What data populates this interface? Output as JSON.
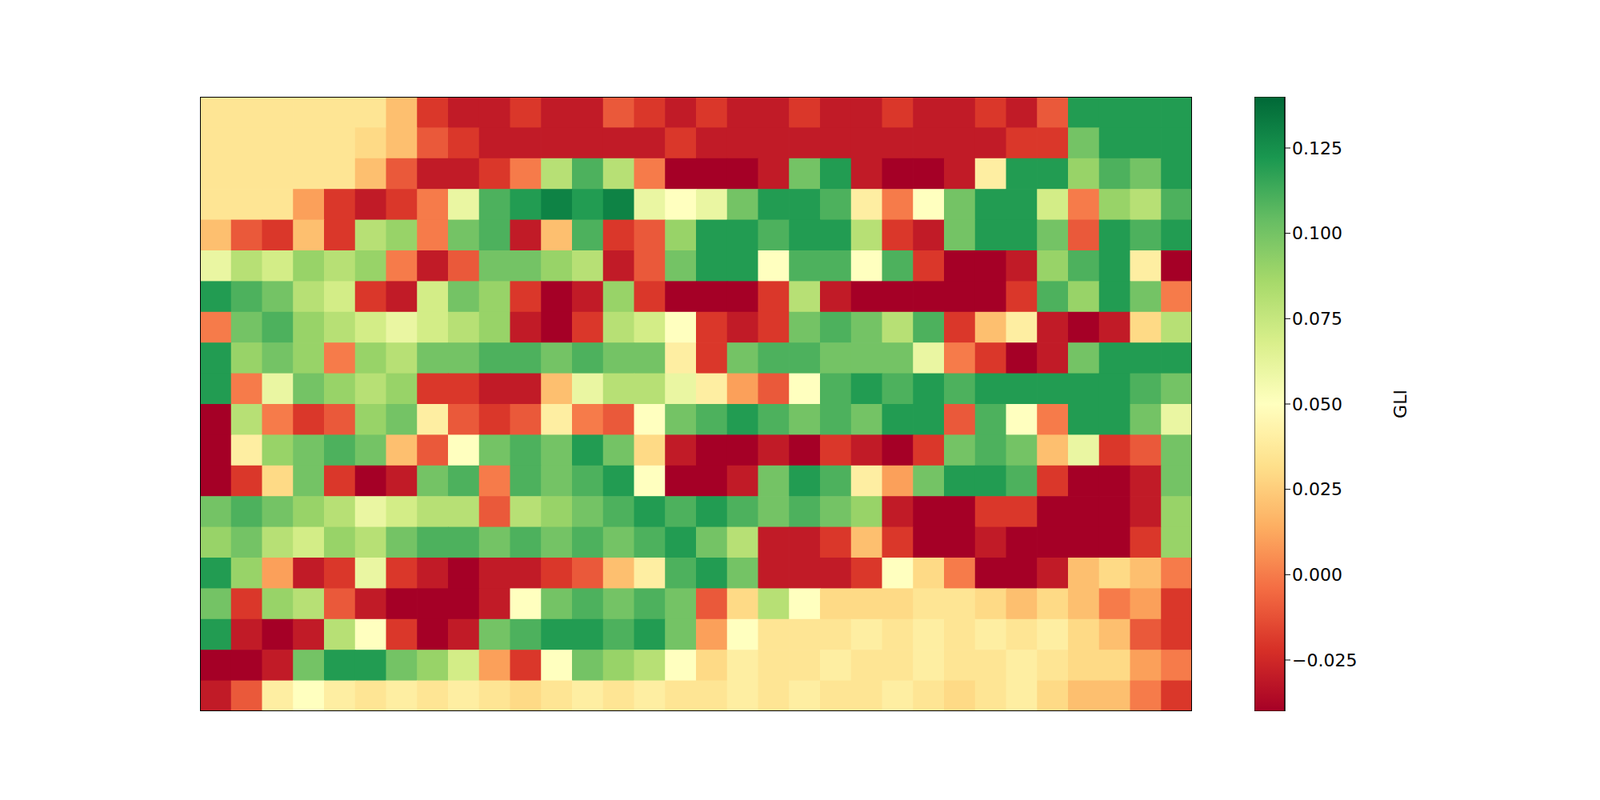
{
  "chart_data": {
    "type": "heatmap",
    "tick_labels": false,
    "colorbar": {
      "label": "GLI",
      "range": [
        -0.04,
        0.14
      ],
      "ticks": [
        {
          "value": -0.025,
          "label": "−0.025"
        },
        {
          "value": 0,
          "label": "0.000"
        },
        {
          "value": 0.025,
          "label": "0.025"
        },
        {
          "value": 0.05,
          "label": "0.050"
        },
        {
          "value": 0.075,
          "label": "0.075"
        },
        {
          "value": 0.1,
          "label": "0.100"
        },
        {
          "value": 0.125,
          "label": "0.125"
        }
      ]
    },
    "cells": [
      [
        0.035,
        0.035,
        0.035,
        0.035,
        0.035,
        0.035,
        0.02,
        -0.02,
        -0.03,
        -0.03,
        -0.02,
        -0.03,
        -0.03,
        -0.01,
        -0.02,
        -0.03,
        -0.02,
        -0.03,
        -0.03,
        -0.02,
        -0.03,
        -0.03,
        -0.02,
        -0.03,
        -0.03,
        -0.02,
        -0.03,
        -0.01,
        0.12,
        0.12,
        0.12,
        0.12
      ],
      [
        0.035,
        0.035,
        0.035,
        0.035,
        0.035,
        0.03,
        0.02,
        -0.01,
        -0.02,
        -0.03,
        -0.03,
        -0.03,
        -0.03,
        -0.03,
        -0.03,
        -0.02,
        -0.03,
        -0.03,
        -0.03,
        -0.03,
        -0.03,
        -0.03,
        -0.03,
        -0.03,
        -0.03,
        -0.03,
        -0.02,
        -0.02,
        0.1,
        0.12,
        0.12,
        0.12
      ],
      [
        0.035,
        0.035,
        0.035,
        0.035,
        0.035,
        0.02,
        -0.01,
        -0.03,
        -0.03,
        -0.02,
        0.0,
        0.08,
        0.11,
        0.08,
        0.0,
        -0.04,
        -0.04,
        -0.04,
        -0.03,
        0.1,
        0.12,
        -0.03,
        -0.04,
        -0.04,
        -0.03,
        0.04,
        0.12,
        0.12,
        0.09,
        0.11,
        0.1,
        0.12
      ],
      [
        0.035,
        0.035,
        0.035,
        0.01,
        -0.02,
        -0.03,
        -0.02,
        0.0,
        0.06,
        0.11,
        0.12,
        0.13,
        0.12,
        0.13,
        0.06,
        0.05,
        0.06,
        0.1,
        0.12,
        0.12,
        0.11,
        0.04,
        0.0,
        0.05,
        0.1,
        0.12,
        0.12,
        0.07,
        0.0,
        0.09,
        0.08,
        0.11
      ],
      [
        0.02,
        -0.01,
        -0.02,
        0.02,
        -0.02,
        0.08,
        0.09,
        0.0,
        0.1,
        0.11,
        -0.03,
        0.02,
        0.11,
        -0.02,
        -0.01,
        0.09,
        0.12,
        0.12,
        0.11,
        0.12,
        0.12,
        0.08,
        -0.02,
        -0.03,
        0.1,
        0.12,
        0.12,
        0.1,
        -0.01,
        0.12,
        0.11,
        0.12
      ],
      [
        0.06,
        0.08,
        0.07,
        0.09,
        0.08,
        0.09,
        0.0,
        -0.03,
        -0.01,
        0.1,
        0.1,
        0.09,
        0.08,
        -0.03,
        -0.01,
        0.1,
        0.12,
        0.12,
        0.05,
        0.11,
        0.11,
        0.05,
        0.11,
        -0.02,
        -0.04,
        -0.04,
        -0.03,
        0.09,
        0.11,
        0.12,
        0.04,
        -0.04
      ],
      [
        0.12,
        0.11,
        0.1,
        0.08,
        0.07,
        -0.02,
        -0.03,
        0.07,
        0.1,
        0.09,
        -0.02,
        -0.04,
        -0.03,
        0.09,
        -0.02,
        -0.04,
        -0.04,
        -0.04,
        -0.02,
        0.08,
        -0.03,
        -0.04,
        -0.04,
        -0.04,
        -0.04,
        -0.04,
        -0.02,
        0.11,
        0.09,
        0.12,
        0.1,
        0.0
      ],
      [
        0.0,
        0.1,
        0.11,
        0.09,
        0.08,
        0.07,
        0.06,
        0.07,
        0.08,
        0.09,
        -0.03,
        -0.04,
        -0.02,
        0.08,
        0.07,
        0.05,
        -0.02,
        -0.03,
        -0.02,
        0.1,
        0.11,
        0.1,
        0.08,
        0.11,
        -0.02,
        0.02,
        0.04,
        -0.03,
        -0.04,
        -0.03,
        0.03,
        0.08
      ],
      [
        0.12,
        0.09,
        0.1,
        0.09,
        0.0,
        0.09,
        0.08,
        0.1,
        0.1,
        0.11,
        0.11,
        0.1,
        0.11,
        0.1,
        0.1,
        0.04,
        -0.02,
        0.1,
        0.11,
        0.11,
        0.1,
        0.1,
        0.1,
        0.06,
        0.0,
        -0.02,
        -0.04,
        -0.03,
        0.1,
        0.12,
        0.12,
        0.12
      ],
      [
        0.12,
        0.0,
        0.06,
        0.1,
        0.09,
        0.08,
        0.09,
        -0.02,
        -0.02,
        -0.03,
        -0.03,
        0.02,
        0.06,
        0.08,
        0.08,
        0.06,
        0.04,
        0.01,
        -0.01,
        0.05,
        0.11,
        0.12,
        0.11,
        0.12,
        0.11,
        0.12,
        0.12,
        0.12,
        0.12,
        0.12,
        0.11,
        0.1
      ],
      [
        -0.04,
        0.08,
        0.0,
        -0.02,
        -0.01,
        0.09,
        0.1,
        0.04,
        -0.01,
        -0.02,
        -0.01,
        0.04,
        0.0,
        -0.01,
        0.05,
        0.1,
        0.11,
        0.12,
        0.11,
        0.1,
        0.11,
        0.1,
        0.12,
        0.12,
        -0.01,
        0.11,
        0.05,
        0.0,
        0.12,
        0.12,
        0.1,
        0.06
      ],
      [
        -0.04,
        0.04,
        0.09,
        0.1,
        0.11,
        0.1,
        0.02,
        -0.01,
        0.05,
        0.1,
        0.11,
        0.1,
        0.12,
        0.1,
        0.03,
        -0.03,
        -0.04,
        -0.04,
        -0.03,
        -0.04,
        -0.02,
        -0.03,
        -0.04,
        -0.02,
        0.1,
        0.11,
        0.1,
        0.02,
        0.06,
        -0.02,
        -0.01,
        0.1
      ],
      [
        -0.04,
        -0.02,
        0.03,
        0.1,
        -0.02,
        -0.04,
        -0.03,
        0.1,
        0.11,
        0.0,
        0.11,
        0.1,
        0.11,
        0.12,
        0.05,
        -0.04,
        -0.04,
        -0.03,
        0.1,
        0.12,
        0.11,
        0.04,
        0.01,
        0.1,
        0.12,
        0.12,
        0.11,
        -0.02,
        -0.04,
        -0.04,
        -0.03,
        0.1
      ],
      [
        0.1,
        0.11,
        0.1,
        0.09,
        0.08,
        0.06,
        0.07,
        0.08,
        0.08,
        -0.01,
        0.08,
        0.09,
        0.1,
        0.11,
        0.12,
        0.11,
        0.12,
        0.11,
        0.1,
        0.11,
        0.1,
        0.09,
        -0.03,
        -0.04,
        -0.04,
        -0.02,
        -0.02,
        -0.04,
        -0.04,
        -0.04,
        -0.03,
        0.09
      ],
      [
        0.09,
        0.1,
        0.08,
        0.07,
        0.09,
        0.08,
        0.1,
        0.11,
        0.11,
        0.1,
        0.11,
        0.1,
        0.11,
        0.1,
        0.11,
        0.12,
        0.1,
        0.08,
        -0.03,
        -0.03,
        -0.02,
        0.02,
        -0.02,
        -0.04,
        -0.04,
        -0.03,
        -0.04,
        -0.04,
        -0.04,
        -0.04,
        -0.02,
        0.09
      ],
      [
        0.12,
        0.09,
        0.01,
        -0.03,
        -0.02,
        0.06,
        -0.02,
        -0.03,
        -0.04,
        -0.03,
        -0.03,
        -0.02,
        -0.01,
        0.02,
        0.04,
        0.11,
        0.12,
        0.1,
        -0.03,
        -0.03,
        -0.03,
        -0.02,
        0.05,
        0.03,
        0.0,
        -0.04,
        -0.04,
        -0.03,
        0.02,
        0.03,
        0.02,
        0.0
      ],
      [
        0.1,
        -0.02,
        0.09,
        0.08,
        -0.01,
        -0.03,
        -0.04,
        -0.04,
        -0.04,
        -0.03,
        0.05,
        0.1,
        0.11,
        0.1,
        0.11,
        0.1,
        -0.01,
        0.03,
        0.08,
        0.05,
        0.03,
        0.03,
        0.03,
        0.035,
        0.035,
        0.03,
        0.02,
        0.03,
        0.02,
        0.0,
        0.01,
        -0.02
      ],
      [
        0.12,
        -0.03,
        -0.04,
        -0.03,
        0.08,
        0.05,
        -0.02,
        -0.04,
        -0.03,
        0.1,
        0.11,
        0.12,
        0.12,
        0.11,
        0.12,
        0.1,
        0.01,
        0.05,
        0.035,
        0.035,
        0.035,
        0.04,
        0.035,
        0.04,
        0.035,
        0.04,
        0.035,
        0.04,
        0.03,
        0.02,
        -0.01,
        -0.02
      ],
      [
        -0.04,
        -0.04,
        -0.03,
        0.1,
        0.12,
        0.12,
        0.1,
        0.09,
        0.07,
        0.01,
        -0.02,
        0.05,
        0.1,
        0.09,
        0.08,
        0.05,
        0.03,
        0.04,
        0.035,
        0.035,
        0.04,
        0.035,
        0.035,
        0.04,
        0.035,
        0.035,
        0.04,
        0.035,
        0.03,
        0.03,
        0.01,
        0.0
      ],
      [
        -0.03,
        -0.01,
        0.04,
        0.05,
        0.04,
        0.035,
        0.04,
        0.035,
        0.04,
        0.035,
        0.03,
        0.035,
        0.04,
        0.035,
        0.04,
        0.035,
        0.035,
        0.04,
        0.035,
        0.04,
        0.035,
        0.035,
        0.04,
        0.035,
        0.03,
        0.035,
        0.04,
        0.03,
        0.02,
        0.02,
        0.0,
        -0.02
      ]
    ]
  }
}
